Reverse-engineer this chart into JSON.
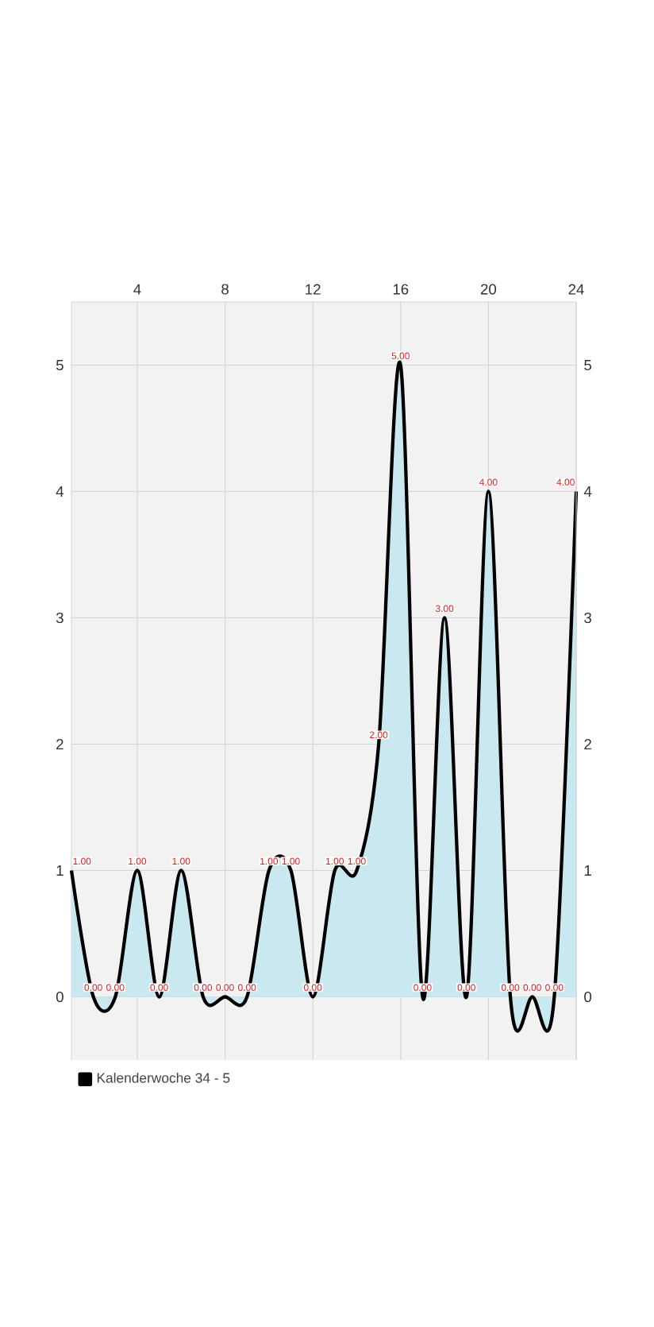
{
  "chart_data": {
    "type": "area",
    "x": [
      1,
      2,
      3,
      4,
      5,
      6,
      7,
      8,
      9,
      10,
      11,
      12,
      13,
      14,
      15,
      16,
      17,
      18,
      19,
      20,
      21,
      22,
      23,
      24
    ],
    "series": [
      {
        "name": "Kalenderwoche 34 - 5",
        "color": "#000000",
        "values": [
          1,
          0,
          0,
          1,
          0,
          1,
          0,
          0,
          0,
          1,
          1,
          0,
          1,
          1,
          2,
          5,
          0,
          3,
          0,
          4,
          0,
          0,
          0,
          4
        ],
        "value_labels": [
          "1.00",
          "0.00",
          "0.00",
          "1.00",
          "0.00",
          "1.00",
          "0.00",
          "0.00",
          "0.00",
          "1.00",
          "1.00",
          "0.00",
          "1.00",
          "1.00",
          "2.00",
          "5.00",
          "0.00",
          "3.00",
          "0.00",
          "4.00",
          "0.00",
          "0.00",
          "0.00",
          "4.00"
        ]
      }
    ],
    "xlim": [
      1,
      24
    ],
    "xticks": [
      4,
      8,
      12,
      16,
      20,
      24
    ],
    "ylim": [
      -0.5,
      5.5
    ],
    "yticks": [
      0,
      1,
      2,
      3,
      4,
      5
    ],
    "y2lim": [
      -0.5,
      5.5
    ],
    "y2ticks": [
      0,
      1,
      2,
      3,
      4,
      5
    ],
    "grid": true,
    "legend": "bottom left"
  }
}
